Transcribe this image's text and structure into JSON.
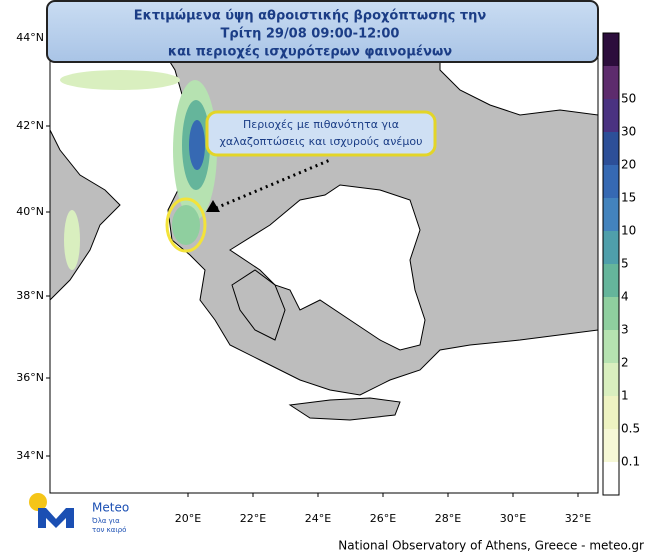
{
  "title": {
    "lines": [
      "Εκτιμώμενα ύψη αθροιστικής βροχόπτωσης την",
      "Τρίτη 29/08 09:00-12:00",
      "και περιοχές ισχυρότερων φαινομένων"
    ]
  },
  "callout": {
    "lines": [
      "Περιοχές με πιθανότητα για",
      "χαλαζοπτώσεις και ισχυρούς ανέμου"
    ]
  },
  "map": {
    "lat_labels": [
      "44°N",
      "42°N",
      "40°N",
      "38°N",
      "36°N",
      "34°N"
    ],
    "lon_labels": [
      "20°E",
      "22°E",
      "24°E",
      "26°E",
      "28°E",
      "30°E",
      "32°E"
    ]
  },
  "legend": {
    "labels": [
      "0.1",
      "0.5",
      "1",
      "2",
      "3",
      "4",
      "5",
      "10",
      "15",
      "20",
      "30",
      "50"
    ],
    "colors": [
      "#ffffff",
      "#f6f8d6",
      "#eef3c2",
      "#d9efbf",
      "#b6e2b1",
      "#8fcf9f",
      "#65b59b",
      "#4f9fab",
      "#4383bd",
      "#3669b3",
      "#2d4f98",
      "#4a3281",
      "#5d2b6d",
      "#2c0d3c"
    ]
  },
  "logo": {
    "name": "Meteo",
    "tagline": [
      "Όλα για",
      "τον καιρό"
    ]
  },
  "footer": "National Observatory of Athens, Greece - meteo.gr"
}
